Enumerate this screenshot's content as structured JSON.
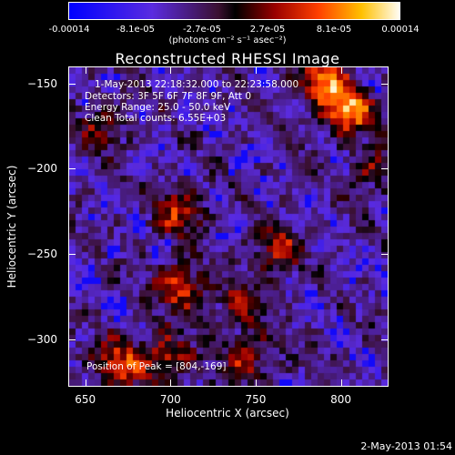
{
  "colorbar": {
    "ticks": [
      "-0.00014",
      "-8.1e-05",
      "-2.7e-05",
      "2.7e-05",
      "8.1e-05",
      "0.00014"
    ],
    "units": "(photons cm⁻² s⁻¹ asec⁻²)",
    "range": [
      -0.00014,
      0.00014
    ]
  },
  "info": {
    "time_range": "1-May-2013 22:18:32.000 to 22:23:58.000",
    "detectors": "Detectors: 3F 5F 6F 7F 8F 9F, Att 0",
    "energy": "Energy Range: 25.0 - 50.0 keV",
    "clean": "Clean    Total counts: 6.55E+03",
    "peak": "Position of Peak = [804,-169]"
  },
  "datestamp": "2-May-2013 01:54",
  "chart_data": {
    "type": "heatmap",
    "title": "Reconstructed RHESSI Image",
    "xlabel": "Heliocentric X (arcsec)",
    "ylabel": "Heliocentric Y (arcsec)",
    "xlim": [
      640,
      828
    ],
    "ylim": [
      -328,
      -140
    ],
    "xticks": [
      650,
      700,
      750,
      800
    ],
    "yticks": [
      -150,
      -200,
      -250,
      -300
    ],
    "xtick_labels": [
      "650",
      "700",
      "750",
      "800"
    ],
    "ytick_labels": [
      "-150",
      "-200",
      "-250",
      "-300"
    ],
    "peak": [
      804,
      -169
    ],
    "sources": [
      {
        "x": 804,
        "y": -165,
        "value": 0.00014
      },
      {
        "x": 790,
        "y": -148,
        "value": 0.00011
      },
      {
        "x": 706,
        "y": -225,
        "value": 9e-05
      },
      {
        "x": 705,
        "y": -270,
        "value": 0.0001
      },
      {
        "x": 762,
        "y": -248,
        "value": 8e-05
      },
      {
        "x": 740,
        "y": -282,
        "value": 7e-05
      },
      {
        "x": 670,
        "y": -315,
        "value": 0.0001
      },
      {
        "x": 698,
        "y": -312,
        "value": 9e-05
      },
      {
        "x": 745,
        "y": -312,
        "value": 7e-05
      },
      {
        "x": 660,
        "y": -175,
        "value": 6e-05
      },
      {
        "x": 820,
        "y": -200,
        "value": 6e-05
      }
    ]
  }
}
